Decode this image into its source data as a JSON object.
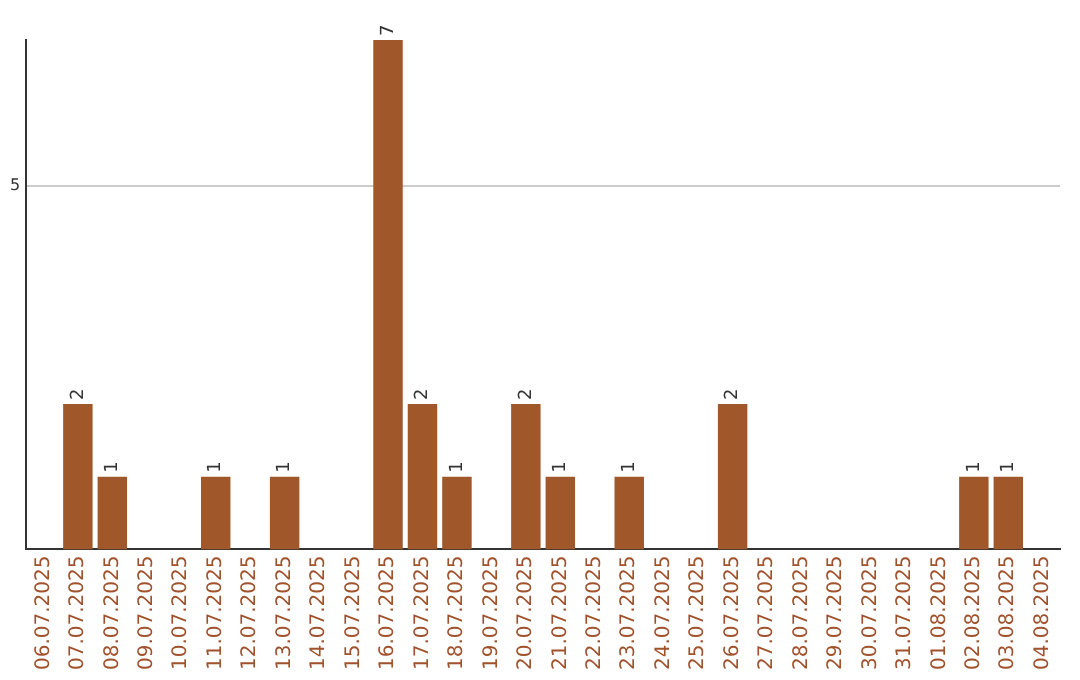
{
  "chart_data": {
    "type": "bar",
    "categories": [
      "06.07.2025",
      "07.07.2025",
      "08.07.2025",
      "09.07.2025",
      "10.07.2025",
      "11.07.2025",
      "12.07.2025",
      "13.07.2025",
      "14.07.2025",
      "15.07.2025",
      "16.07.2025",
      "17.07.2025",
      "18.07.2025",
      "19.07.2025",
      "20.07.2025",
      "21.07.2025",
      "22.07.2025",
      "23.07.2025",
      "24.07.2025",
      "25.07.2025",
      "26.07.2025",
      "27.07.2025",
      "28.07.2025",
      "29.07.2025",
      "30.07.2025",
      "31.07.2025",
      "01.08.2025",
      "02.08.2025",
      "03.08.2025",
      "04.08.2025"
    ],
    "values": [
      0,
      2,
      1,
      0,
      0,
      1,
      0,
      1,
      0,
      0,
      7,
      2,
      1,
      0,
      2,
      1,
      0,
      1,
      0,
      0,
      2,
      0,
      0,
      0,
      0,
      0,
      0,
      1,
      1,
      0
    ],
    "value_labels": [
      null,
      "2",
      "1",
      null,
      null,
      "1",
      null,
      "1",
      null,
      null,
      "7",
      "2",
      "1",
      null,
      "2",
      "1",
      null,
      "1",
      null,
      null,
      "2",
      null,
      null,
      null,
      null,
      null,
      null,
      "1",
      "1",
      null
    ],
    "color": "#a0572a",
    "ylim": [
      0,
      7
    ],
    "yticks": [
      5
    ],
    "grid": "y",
    "legend": false
  }
}
